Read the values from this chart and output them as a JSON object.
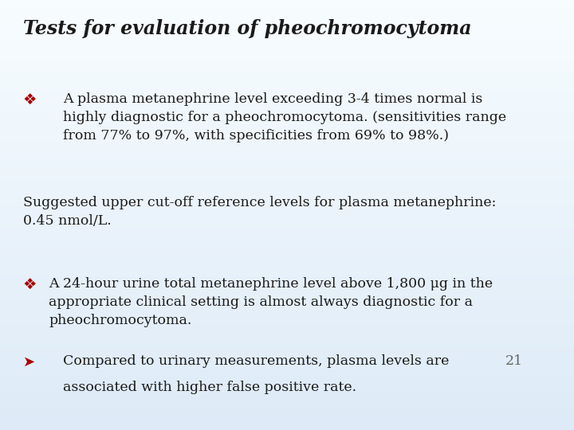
{
  "title": "Tests for evaluation of pheochromocytoma",
  "title_fontsize": 17,
  "title_color": "#1a1a1a",
  "text_color": "#1a1a1a",
  "bullet_color": "#aa0000",
  "body_fontsize": 12.5,
  "small_fontsize": 11,
  "bullet1_main": "A plasma metanephrine level exceeding 3-4 times normal is\nhighly diagnostic for a pheochromocytoma. (sensitivities range\nfrom 77% to 97%, with specificities from 69% to 98%.)",
  "suggested_text": "Suggested upper cut-off reference levels for plasma metanephrine:\n0.45 nmol/L.",
  "bullet2_main": "A 24-hour urine total metanephrine level above 1,800 μg in the\nappropriate clinical setting is almost always diagnostic for a\npheochromocytoma.",
  "arrow_line1": "Compared to urinary measurements, plasma levels are",
  "arrow_line2": "associated with higher false positive rate.",
  "page_number": "21",
  "bg_color": "#d4e9f7"
}
